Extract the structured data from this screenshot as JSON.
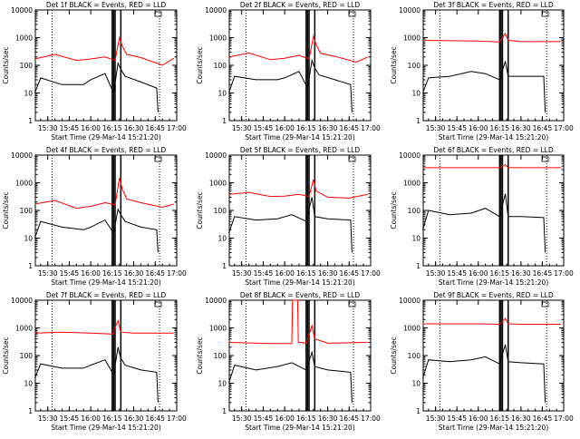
{
  "chart_data": [
    {
      "type": "line",
      "title": "Det 1f BLACK = Events, RED = LLD",
      "xlabel": "Start Time (29-Mar-14 15:21:20)",
      "ylabel": "Counts/sec",
      "xticks": [
        "15:30",
        "15:45",
        "16:00",
        "16:15",
        "16:30",
        "16:45",
        "17:00"
      ],
      "yticks": [
        "1",
        "10",
        "100",
        "1000",
        "10000"
      ],
      "xlim": [
        "15:21:20",
        "17:00"
      ],
      "ylim": [
        1,
        10000
      ],
      "y_scale": "log",
      "series": [
        {
          "color": "#ff0000",
          "x": [
            "15:21",
            "15:35",
            "15:50",
            "16:00",
            "16:10",
            "16:17",
            "16:20",
            "16:22",
            "16:25",
            "16:35",
            "16:50",
            "16:58"
          ],
          "values": [
            170,
            250,
            150,
            170,
            200,
            150,
            1000,
            500,
            250,
            190,
            100,
            180
          ]
        },
        {
          "color": "#000000",
          "x": [
            "15:21",
            "15:25",
            "15:40",
            "15:55",
            "16:00",
            "16:10",
            "16:16",
            "16:19",
            "16:21",
            "16:24",
            "16:35",
            "16:46",
            "16:47"
          ],
          "values": [
            10,
            35,
            20,
            20,
            30,
            50,
            10,
            120,
            70,
            40,
            25,
            15,
            2
          ]
        }
      ],
      "vertical_lines": {
        "solid": [
          "16:15",
          "16:16",
          "16:17",
          "16:21"
        ],
        "dotted": [
          "15:21:20",
          "15:33",
          "16:48"
        ]
      }
    },
    {
      "type": "line",
      "title": "Det 2f BLACK = Events, RED = LLD",
      "xlabel": "Start Time (29-Mar-14 15:21:20)",
      "ylabel": "Counts/sec",
      "xticks": [
        "15:30",
        "15:45",
        "16:00",
        "16:15",
        "16:30",
        "16:45",
        "17:00"
      ],
      "yticks": [
        "1",
        "10",
        "100",
        "1000",
        "10000"
      ],
      "xlim": [
        "15:21:20",
        "17:00"
      ],
      "ylim": [
        1,
        10000
      ],
      "y_scale": "log",
      "series": [
        {
          "color": "#ff0000",
          "x": [
            "15:21",
            "15:35",
            "15:50",
            "16:00",
            "16:10",
            "16:17",
            "16:20",
            "16:22",
            "16:25",
            "16:35",
            "16:50",
            "16:58"
          ],
          "values": [
            200,
            280,
            160,
            180,
            230,
            170,
            1100,
            550,
            270,
            210,
            130,
            200
          ]
        },
        {
          "color": "#000000",
          "x": [
            "15:21",
            "15:25",
            "15:40",
            "15:55",
            "16:00",
            "16:10",
            "16:16",
            "16:19",
            "16:21",
            "16:24",
            "16:35",
            "16:46",
            "16:47"
          ],
          "values": [
            10,
            40,
            30,
            30,
            35,
            60,
            15,
            150,
            80,
            45,
            30,
            20,
            2
          ]
        }
      ],
      "vertical_lines": {
        "solid": [
          "16:15",
          "16:16",
          "16:17",
          "16:21"
        ],
        "dotted": [
          "15:21:20",
          "15:33",
          "16:48"
        ]
      }
    },
    {
      "type": "line",
      "title": "Det 3f BLACK = Events, RED = LLD",
      "xlabel": "Start Time (29-Mar-14 15:21:20)",
      "ylabel": "Counts/sec",
      "xticks": [
        "15:30",
        "15:45",
        "16:00",
        "16:15",
        "16:30",
        "16:45",
        "17:00"
      ],
      "yticks": [
        "1",
        "10",
        "100",
        "1000",
        "10000"
      ],
      "xlim": [
        "15:21:20",
        "17:00"
      ],
      "ylim": [
        1,
        10000
      ],
      "y_scale": "log",
      "series": [
        {
          "color": "#ff0000",
          "x": [
            "15:21",
            "16:00",
            "16:15",
            "16:19",
            "16:21",
            "16:30",
            "16:58"
          ],
          "values": [
            800,
            750,
            700,
            1400,
            800,
            720,
            720
          ]
        },
        {
          "color": "#000000",
          "x": [
            "15:21",
            "15:25",
            "15:40",
            "15:55",
            "16:05",
            "16:15",
            "16:19",
            "16:21",
            "16:30",
            "16:46",
            "16:47"
          ],
          "values": [
            10,
            35,
            40,
            60,
            50,
            30,
            140,
            40,
            40,
            40,
            2
          ]
        }
      ],
      "vertical_lines": {
        "solid": [
          "16:15",
          "16:16",
          "16:17",
          "16:21"
        ],
        "dotted": [
          "15:21:20",
          "15:33",
          "16:48"
        ]
      }
    },
    {
      "type": "line",
      "title": "Det 4f BLACK = Events, RED = LLD",
      "xlabel": "Start Time (29-Mar-14 15:21:20)",
      "ylabel": "Counts/sec",
      "xticks": [
        "15:30",
        "15:45",
        "16:00",
        "16:15",
        "16:30",
        "16:45",
        "17:00"
      ],
      "yticks": [
        "1",
        "10",
        "100",
        "1000",
        "10000"
      ],
      "xlim": [
        "15:21:20",
        "17:00"
      ],
      "ylim": [
        1,
        10000
      ],
      "y_scale": "log",
      "series": [
        {
          "color": "#ff0000",
          "x": [
            "15:21",
            "15:35",
            "15:50",
            "16:00",
            "16:10",
            "16:17",
            "16:20",
            "16:22",
            "16:25",
            "16:35",
            "16:50",
            "16:58"
          ],
          "values": [
            170,
            230,
            120,
            140,
            190,
            160,
            1500,
            600,
            260,
            190,
            130,
            170
          ]
        },
        {
          "color": "#000000",
          "x": [
            "15:21",
            "15:25",
            "15:40",
            "15:55",
            "16:00",
            "16:10",
            "16:16",
            "16:19",
            "16:21",
            "16:24",
            "16:35",
            "16:46",
            "16:47"
          ],
          "values": [
            10,
            40,
            25,
            20,
            25,
            45,
            15,
            110,
            70,
            40,
            25,
            20,
            3
          ]
        }
      ],
      "vertical_lines": {
        "solid": [
          "16:15",
          "16:16",
          "16:17",
          "16:21"
        ],
        "dotted": [
          "15:21:20",
          "15:33",
          "16:48"
        ]
      }
    },
    {
      "type": "line",
      "title": "Det 5f BLACK = Events, RED = LLD",
      "xlabel": "Start Time (29-Mar-14 15:21:20)",
      "ylabel": "Counts/sec",
      "xticks": [
        "15:30",
        "15:45",
        "16:00",
        "16:15",
        "16:30",
        "16:45",
        "17:00"
      ],
      "yticks": [
        "1",
        "10",
        "100",
        "1000",
        "10000"
      ],
      "xlim": [
        "15:21:20",
        "17:00"
      ],
      "ylim": [
        1,
        10000
      ],
      "y_scale": "log",
      "series": [
        {
          "color": "#ff0000",
          "x": [
            "15:21",
            "15:35",
            "15:50",
            "16:00",
            "16:10",
            "16:17",
            "16:20",
            "16:22",
            "16:30",
            "16:45",
            "16:58"
          ],
          "values": [
            380,
            450,
            320,
            330,
            380,
            320,
            1300,
            500,
            300,
            280,
            380
          ]
        },
        {
          "color": "#000000",
          "x": [
            "15:21",
            "15:25",
            "15:40",
            "15:55",
            "16:05",
            "16:15",
            "16:19",
            "16:21",
            "16:30",
            "16:46",
            "16:47"
          ],
          "values": [
            15,
            60,
            45,
            50,
            70,
            40,
            300,
            60,
            50,
            45,
            3
          ]
        }
      ],
      "vertical_lines": {
        "solid": [
          "16:15",
          "16:16",
          "16:17",
          "16:21"
        ],
        "dotted": [
          "15:21:20",
          "15:33",
          "16:48"
        ]
      }
    },
    {
      "type": "line",
      "title": "Det 6f BLACK = Events, RED = LLD",
      "xlabel": "Start Time (29-Mar-14 15:21:20)",
      "ylabel": "Counts/sec",
      "xticks": [
        "15:30",
        "15:45",
        "16:00",
        "16:15",
        "16:30",
        "16:45",
        "17:00"
      ],
      "yticks": [
        "1",
        "10",
        "100",
        "1000",
        "10000"
      ],
      "xlim": [
        "15:21:20",
        "17:00"
      ],
      "ylim": [
        1,
        10000
      ],
      "y_scale": "log",
      "series": [
        {
          "color": "#ff0000",
          "x": [
            "15:21",
            "16:15",
            "16:19",
            "16:21",
            "16:58"
          ],
          "values": [
            3500,
            3500,
            4500,
            3500,
            3500
          ]
        },
        {
          "color": "#000000",
          "x": [
            "15:21",
            "15:25",
            "15:40",
            "15:55",
            "16:05",
            "16:15",
            "16:19",
            "16:21",
            "16:30",
            "16:46",
            "16:47"
          ],
          "values": [
            20,
            100,
            70,
            80,
            120,
            60,
            400,
            60,
            60,
            55,
            3
          ]
        }
      ],
      "vertical_lines": {
        "solid": [
          "16:15",
          "16:16",
          "16:17",
          "16:21"
        ],
        "dotted": [
          "15:21:20",
          "15:33",
          "16:48"
        ]
      }
    },
    {
      "type": "line",
      "title": "Det 7f BLACK = Events, RED = LLD",
      "xlabel": "Start Time (29-Mar-14 15:21:20)",
      "ylabel": "Counts/sec",
      "xticks": [
        "15:30",
        "15:45",
        "16:00",
        "16:15",
        "16:30",
        "16:45",
        "17:00"
      ],
      "yticks": [
        "1",
        "10",
        "100",
        "1000",
        "10000"
      ],
      "xlim": [
        "15:21:20",
        "17:00"
      ],
      "ylim": [
        1,
        10000
      ],
      "y_scale": "log",
      "series": [
        {
          "color": "#ff0000",
          "x": [
            "15:21",
            "15:40",
            "16:00",
            "16:15",
            "16:19",
            "16:21",
            "16:30",
            "16:58"
          ],
          "values": [
            650,
            700,
            650,
            600,
            1800,
            700,
            650,
            650
          ]
        },
        {
          "color": "#000000",
          "x": [
            "15:21",
            "15:25",
            "15:40",
            "15:55",
            "16:00",
            "16:10",
            "16:16",
            "16:19",
            "16:21",
            "16:24",
            "16:35",
            "16:46",
            "16:47"
          ],
          "values": [
            15,
            50,
            35,
            35,
            45,
            70,
            20,
            200,
            80,
            45,
            30,
            25,
            2
          ]
        }
      ],
      "vertical_lines": {
        "solid": [
          "16:15",
          "16:16",
          "16:17",
          "16:21"
        ],
        "dotted": [
          "15:21:20",
          "15:33",
          "16:48"
        ]
      }
    },
    {
      "type": "line",
      "title": "Det 8f BLACK = Events, RED = LLD",
      "xlabel": "Start Time (29-Mar-14 15:21:20)",
      "ylabel": "Counts/sec",
      "xticks": [
        "15:30",
        "15:45",
        "16:00",
        "16:15",
        "16:30",
        "16:45",
        "17:00"
      ],
      "yticks": [
        "1",
        "10",
        "100",
        "1000",
        "10000"
      ],
      "xlim": [
        "15:21:20",
        "17:00"
      ],
      "ylim": [
        1,
        10000
      ],
      "y_scale": "log",
      "series": [
        {
          "color": "#ff0000",
          "x": [
            "15:21",
            "15:50",
            "16:05",
            "16:05:30",
            "16:09",
            "16:09:30",
            "16:15",
            "16:19",
            "16:21",
            "16:30",
            "16:58"
          ],
          "values": [
            300,
            270,
            270,
            10000,
            10000,
            300,
            280,
            1200,
            400,
            280,
            300
          ]
        },
        {
          "color": "#000000",
          "x": [
            "15:21",
            "15:25",
            "15:40",
            "15:55",
            "16:05",
            "16:15",
            "16:19",
            "16:21",
            "16:30",
            "16:46",
            "16:47"
          ],
          "values": [
            10,
            45,
            30,
            40,
            55,
            30,
            130,
            40,
            30,
            25,
            2
          ]
        }
      ],
      "vertical_lines": {
        "solid": [
          "16:15",
          "16:16",
          "16:17",
          "16:21"
        ],
        "dotted": [
          "15:21:20",
          "15:33",
          "16:48"
        ]
      }
    },
    {
      "type": "line",
      "title": "Det 9f BLACK = Events, RED = LLD",
      "xlabel": "Start Time (29-Mar-14 15:21:20)",
      "ylabel": "Counts/sec",
      "xticks": [
        "15:30",
        "15:45",
        "16:00",
        "16:15",
        "16:30",
        "16:45",
        "17:00"
      ],
      "yticks": [
        "1",
        "10",
        "100",
        "1000",
        "10000"
      ],
      "xlim": [
        "15:21:20",
        "17:00"
      ],
      "ylim": [
        1,
        10000
      ],
      "y_scale": "log",
      "series": [
        {
          "color": "#ff0000",
          "x": [
            "15:21",
            "16:00",
            "16:15",
            "16:19",
            "16:21",
            "16:30",
            "16:58"
          ],
          "values": [
            1400,
            1400,
            1350,
            2200,
            1400,
            1350,
            1350
          ]
        },
        {
          "color": "#000000",
          "x": [
            "15:21",
            "15:25",
            "15:40",
            "15:55",
            "16:05",
            "16:15",
            "16:19",
            "16:21",
            "16:30",
            "16:46",
            "16:47"
          ],
          "values": [
            15,
            70,
            60,
            70,
            90,
            50,
            250,
            60,
            55,
            50,
            2
          ]
        }
      ],
      "vertical_lines": {
        "solid": [
          "16:15",
          "16:16",
          "16:17",
          "16:21"
        ],
        "dotted": [
          "15:21:20",
          "15:33",
          "16:48"
        ]
      }
    }
  ]
}
